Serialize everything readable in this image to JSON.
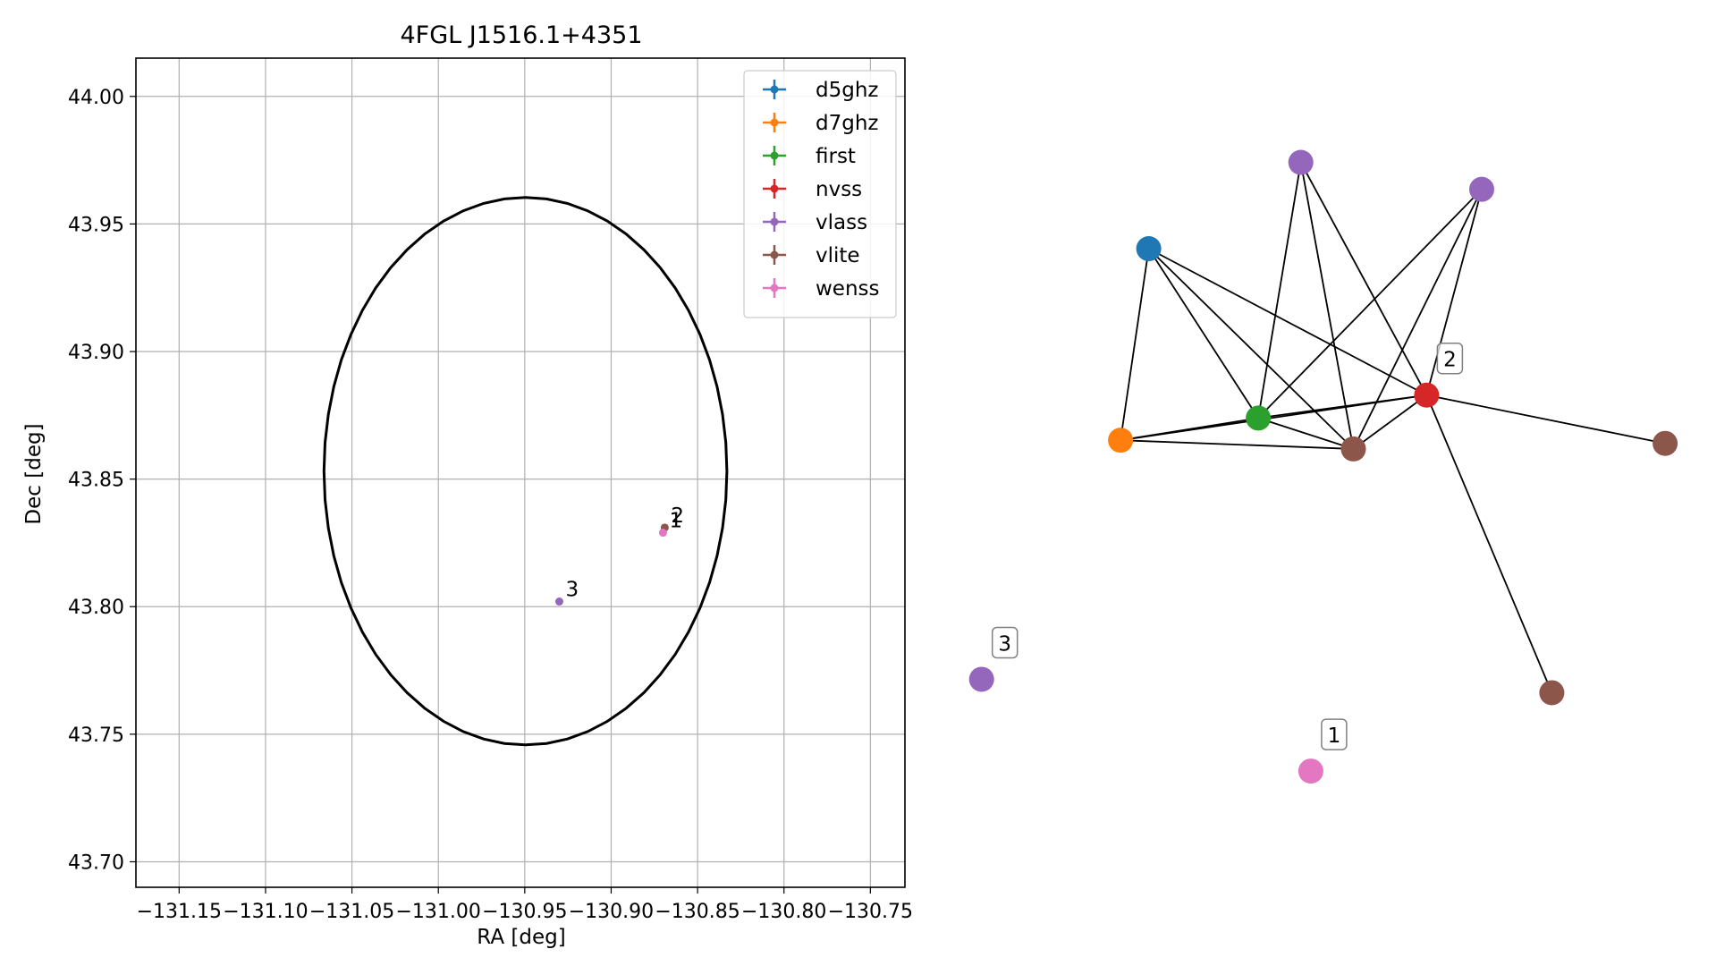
{
  "chart_data": [
    {
      "type": "scatter",
      "title": "4FGL J1516.1+4351",
      "xlabel": "RA [deg]",
      "ylabel": "Dec [deg]",
      "xlim": [
        -131.175,
        -130.73
      ],
      "ylim": [
        43.69,
        44.015
      ],
      "xticks": [
        -131.15,
        -131.1,
        -131.05,
        -131.0,
        -130.95,
        -130.9,
        -130.85,
        -130.8,
        -130.75
      ],
      "xtick_labels": [
        "−131.15",
        "−131.10",
        "−131.05",
        "−131.00",
        "−130.95",
        "−130.90",
        "−130.85",
        "−130.80",
        "−130.75"
      ],
      "yticks": [
        43.7,
        43.75,
        43.8,
        43.85,
        43.9,
        43.95,
        44.0
      ],
      "ytick_labels": [
        "43.70",
        "43.75",
        "43.80",
        "43.85",
        "43.90",
        "43.95",
        "44.00"
      ],
      "grid": true,
      "legend_position": "top-right",
      "ellipse": {
        "center_x": -130.9496,
        "center_y": 43.8531,
        "semi_x": 0.1166,
        "semi_y": 0.1073
      },
      "series": [
        {
          "name": "d5ghz",
          "color": "#1f77b4",
          "points": []
        },
        {
          "name": "d7ghz",
          "color": "#ff7f0e",
          "points": []
        },
        {
          "name": "first",
          "color": "#2ca02c",
          "points": []
        },
        {
          "name": "nvss",
          "color": "#d62728",
          "points": []
        },
        {
          "name": "vlass",
          "color": "#9467bd",
          "points": [
            {
              "x": -130.93,
              "y": 43.802
            }
          ]
        },
        {
          "name": "vlite",
          "color": "#8c564b",
          "points": [
            {
              "x": -130.869,
              "y": 43.831
            }
          ]
        },
        {
          "name": "wenss",
          "color": "#e377c2",
          "points": [
            {
              "x": -130.87,
              "y": 43.829
            }
          ]
        }
      ],
      "annotations": [
        {
          "text": "3",
          "x": -130.93,
          "y": 43.802
        },
        {
          "text": "2",
          "x": -130.869,
          "y": 43.831
        },
        {
          "text": "1",
          "x": -130.87,
          "y": 43.829
        }
      ]
    },
    {
      "type": "network",
      "nodes": [
        {
          "id": "n_blue",
          "color": "#1f77b4",
          "x": 0.248,
          "y": 0.226
        },
        {
          "id": "n_orange",
          "color": "#ff7f0e",
          "x": 0.203,
          "y": 0.468
        },
        {
          "id": "n_green",
          "color": "#2ca02c",
          "x": 0.423,
          "y": 0.44
        },
        {
          "id": "n_red",
          "color": "#d62728",
          "x": 0.692,
          "y": 0.411,
          "label": "2"
        },
        {
          "id": "n_brown_c",
          "color": "#8c564b",
          "x": 0.575,
          "y": 0.479
        },
        {
          "id": "n_purple_t1",
          "color": "#9467bd",
          "x": 0.491,
          "y": 0.117
        },
        {
          "id": "n_purple_t2",
          "color": "#9467bd",
          "x": 0.78,
          "y": 0.151
        },
        {
          "id": "n_brown_r",
          "color": "#8c564b",
          "x": 1.073,
          "y": 0.472
        },
        {
          "id": "n_brown_b",
          "color": "#8c564b",
          "x": 0.892,
          "y": 0.787
        },
        {
          "id": "n_purple_3",
          "color": "#9467bd",
          "x": -0.019,
          "y": 0.77,
          "label": "3"
        },
        {
          "id": "n_pink_1",
          "color": "#e377c2",
          "x": 0.507,
          "y": 0.886,
          "label": "1"
        }
      ],
      "edges": [
        [
          "n_blue",
          "n_orange"
        ],
        [
          "n_blue",
          "n_green"
        ],
        [
          "n_blue",
          "n_brown_c"
        ],
        [
          "n_blue",
          "n_red"
        ],
        [
          "n_orange",
          "n_green"
        ],
        [
          "n_orange",
          "n_brown_c"
        ],
        [
          "n_orange",
          "n_red"
        ],
        [
          "n_green",
          "n_brown_c"
        ],
        [
          "n_green",
          "n_red"
        ],
        [
          "n_green",
          "n_purple_t1"
        ],
        [
          "n_green",
          "n_purple_t2"
        ],
        [
          "n_brown_c",
          "n_red"
        ],
        [
          "n_brown_c",
          "n_purple_t1"
        ],
        [
          "n_brown_c",
          "n_purple_t2"
        ],
        [
          "n_red",
          "n_purple_t1"
        ],
        [
          "n_red",
          "n_purple_t2"
        ],
        [
          "n_red",
          "n_brown_r"
        ],
        [
          "n_red",
          "n_brown_b"
        ]
      ]
    }
  ]
}
